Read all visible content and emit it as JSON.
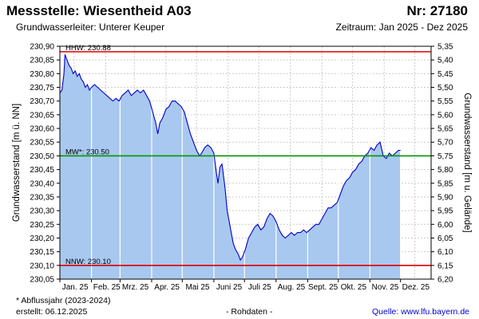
{
  "header": {
    "title": "Messstelle: Wiesentheid A03",
    "station_number": "Nr: 27180",
    "aquifer": "Grundwasserleiter:   Unterer Keuper",
    "period": "Zeitraum: Jan 2025 - Dez 2025"
  },
  "footer": {
    "footnote": "* Abflussjahr (2023-2024)",
    "created": "erstellt:  06.12.2025",
    "data_type": "- Rohdaten -",
    "source": "Quelle: www.lfu.bayern.de"
  },
  "colors": {
    "fill": "#a8c8f0",
    "line": "#0000cc",
    "hhw": "#dd0000",
    "nnw": "#dd0000",
    "mw": "#009900",
    "grid": "#cccccc",
    "month_grid": "#ffffff"
  },
  "chart_data": {
    "type": "area",
    "ylabel": "Grundwasserstand [m ü. NN]",
    "y2label": "Grundwasserstand [m u. Gelände]",
    "ylim": [
      230.05,
      230.9
    ],
    "y2lim": [
      6.2,
      5.35
    ],
    "yticks": [
      "230,90",
      "230,85",
      "230,80",
      "230,75",
      "230,70",
      "230,65",
      "230,60",
      "230,55",
      "230,50",
      "230,45",
      "230,40",
      "230,35",
      "230,30",
      "230,25",
      "230,20",
      "230,15",
      "230,10",
      "230,05"
    ],
    "y2ticks": [
      "5,35",
      "5,40",
      "5,45",
      "5,50",
      "5,55",
      "5,60",
      "5,65",
      "5,70",
      "5,75",
      "5,80",
      "5,85",
      "5,90",
      "5,95",
      "6,00",
      "6,05",
      "6,10",
      "6,15",
      "6,20"
    ],
    "months": [
      "Jan. 25",
      "Feb. 25",
      "Mrz. 25",
      "Apr. 25",
      "Mai 25",
      "Juni 25",
      "Juli 25",
      "Aug. 25",
      "Sept. 25",
      "Okt. 25",
      "Nov. 25",
      "Dez. 25"
    ],
    "xlim": [
      "2025-01-01",
      "2025-12-31"
    ],
    "reference_lines": [
      {
        "label": "HHW: 230.88",
        "value": 230.88,
        "color": "#dd0000"
      },
      {
        "label": "MW*: 230.50",
        "value": 230.5,
        "color": "#009900"
      },
      {
        "label": "NNW: 230.10",
        "value": 230.1,
        "color": "#dd0000"
      }
    ],
    "series": [
      {
        "points": [
          [
            "2025-01-01",
            230.73
          ],
          [
            "2025-01-03",
            230.74
          ],
          [
            "2025-01-05",
            230.8
          ],
          [
            "2025-01-06",
            230.87
          ],
          [
            "2025-01-08",
            230.85
          ],
          [
            "2025-01-10",
            230.83
          ],
          [
            "2025-01-12",
            230.82
          ],
          [
            "2025-01-14",
            230.8
          ],
          [
            "2025-01-16",
            230.81
          ],
          [
            "2025-01-18",
            230.79
          ],
          [
            "2025-01-20",
            230.8
          ],
          [
            "2025-01-22",
            230.78
          ],
          [
            "2025-01-24",
            230.77
          ],
          [
            "2025-01-26",
            230.75
          ],
          [
            "2025-01-28",
            230.76
          ],
          [
            "2025-01-30",
            230.74
          ],
          [
            "2025-02-01",
            230.75
          ],
          [
            "2025-02-04",
            230.76
          ],
          [
            "2025-02-07",
            230.75
          ],
          [
            "2025-02-10",
            230.74
          ],
          [
            "2025-02-13",
            230.73
          ],
          [
            "2025-02-16",
            230.72
          ],
          [
            "2025-02-19",
            230.71
          ],
          [
            "2025-02-22",
            230.7
          ],
          [
            "2025-02-25",
            230.71
          ],
          [
            "2025-02-28",
            230.7
          ],
          [
            "2025-03-03",
            230.72
          ],
          [
            "2025-03-06",
            230.73
          ],
          [
            "2025-03-09",
            230.74
          ],
          [
            "2025-03-12",
            230.72
          ],
          [
            "2025-03-15",
            230.73
          ],
          [
            "2025-03-18",
            230.74
          ],
          [
            "2025-03-21",
            230.73
          ],
          [
            "2025-03-24",
            230.74
          ],
          [
            "2025-03-27",
            230.72
          ],
          [
            "2025-03-30",
            230.7
          ],
          [
            "2025-04-02",
            230.66
          ],
          [
            "2025-04-05",
            230.62
          ],
          [
            "2025-04-07",
            230.58
          ],
          [
            "2025-04-09",
            230.62
          ],
          [
            "2025-04-12",
            230.64
          ],
          [
            "2025-04-15",
            230.67
          ],
          [
            "2025-04-18",
            230.68
          ],
          [
            "2025-04-21",
            230.7
          ],
          [
            "2025-04-24",
            230.7
          ],
          [
            "2025-04-27",
            230.69
          ],
          [
            "2025-04-30",
            230.68
          ],
          [
            "2025-05-03",
            230.66
          ],
          [
            "2025-05-06",
            230.62
          ],
          [
            "2025-05-09",
            230.58
          ],
          [
            "2025-05-12",
            230.55
          ],
          [
            "2025-05-15",
            230.52
          ],
          [
            "2025-05-18",
            230.5
          ],
          [
            "2025-05-20",
            230.51
          ],
          [
            "2025-05-23",
            230.53
          ],
          [
            "2025-05-26",
            230.54
          ],
          [
            "2025-05-29",
            230.53
          ],
          [
            "2025-06-01",
            230.51
          ],
          [
            "2025-06-03",
            230.45
          ],
          [
            "2025-06-05",
            230.4
          ],
          [
            "2025-06-07",
            230.46
          ],
          [
            "2025-06-09",
            230.47
          ],
          [
            "2025-06-12",
            230.38
          ],
          [
            "2025-06-14",
            230.3
          ],
          [
            "2025-06-16",
            230.26
          ],
          [
            "2025-06-18",
            230.22
          ],
          [
            "2025-06-20",
            230.18
          ],
          [
            "2025-06-22",
            230.16
          ],
          [
            "2025-06-25",
            230.14
          ],
          [
            "2025-06-27",
            230.12
          ],
          [
            "2025-06-29",
            230.13
          ],
          [
            "2025-07-02",
            230.16
          ],
          [
            "2025-07-05",
            230.2
          ],
          [
            "2025-07-08",
            230.22
          ],
          [
            "2025-07-11",
            230.24
          ],
          [
            "2025-07-14",
            230.25
          ],
          [
            "2025-07-17",
            230.23
          ],
          [
            "2025-07-20",
            230.24
          ],
          [
            "2025-07-23",
            230.27
          ],
          [
            "2025-07-26",
            230.29
          ],
          [
            "2025-07-29",
            230.28
          ],
          [
            "2025-08-01",
            230.26
          ],
          [
            "2025-08-04",
            230.23
          ],
          [
            "2025-08-07",
            230.21
          ],
          [
            "2025-08-10",
            230.2
          ],
          [
            "2025-08-13",
            230.21
          ],
          [
            "2025-08-16",
            230.22
          ],
          [
            "2025-08-19",
            230.21
          ],
          [
            "2025-08-22",
            230.22
          ],
          [
            "2025-08-25",
            230.22
          ],
          [
            "2025-08-28",
            230.23
          ],
          [
            "2025-08-31",
            230.22
          ],
          [
            "2025-09-03",
            230.23
          ],
          [
            "2025-09-06",
            230.24
          ],
          [
            "2025-09-09",
            230.25
          ],
          [
            "2025-09-12",
            230.25
          ],
          [
            "2025-09-15",
            230.27
          ],
          [
            "2025-09-18",
            230.29
          ],
          [
            "2025-09-21",
            230.31
          ],
          [
            "2025-09-24",
            230.31
          ],
          [
            "2025-09-27",
            230.32
          ],
          [
            "2025-09-30",
            230.33
          ],
          [
            "2025-10-03",
            230.36
          ],
          [
            "2025-10-06",
            230.39
          ],
          [
            "2025-10-09",
            230.41
          ],
          [
            "2025-10-12",
            230.42
          ],
          [
            "2025-10-15",
            230.44
          ],
          [
            "2025-10-18",
            230.45
          ],
          [
            "2025-10-21",
            230.47
          ],
          [
            "2025-10-24",
            230.48
          ],
          [
            "2025-10-27",
            230.5
          ],
          [
            "2025-10-30",
            230.51
          ],
          [
            "2025-11-02",
            230.53
          ],
          [
            "2025-11-05",
            230.52
          ],
          [
            "2025-11-08",
            230.54
          ],
          [
            "2025-11-11",
            230.55
          ],
          [
            "2025-11-14",
            230.5
          ],
          [
            "2025-11-17",
            230.49
          ],
          [
            "2025-11-20",
            230.51
          ],
          [
            "2025-11-23",
            230.5
          ],
          [
            "2025-11-26",
            230.51
          ],
          [
            "2025-11-29",
            230.52
          ],
          [
            "2025-12-01",
            230.52
          ]
        ]
      }
    ]
  }
}
